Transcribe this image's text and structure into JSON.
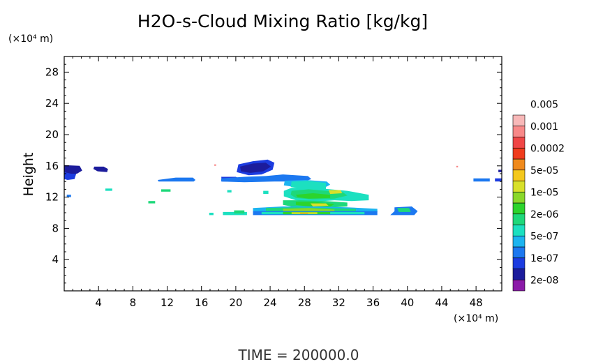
{
  "chart_data": {
    "type": "heatmap",
    "title": "H2O-s-Cloud Mixing Ratio [kg/kg]",
    "ylabel": "Height",
    "y_unit": "(×10⁴ m)",
    "x_unit": "(×10⁴ m)",
    "footer": "TIME = 200000.0",
    "xlim": [
      0,
      51
    ],
    "ylim": [
      0,
      30
    ],
    "x_ticks": [
      4,
      8,
      12,
      16,
      20,
      24,
      28,
      32,
      36,
      40,
      44,
      48
    ],
    "y_ticks": [
      4,
      8,
      12,
      16,
      20,
      24,
      28
    ],
    "colorbar": {
      "colors": [
        "#8b1aa8",
        "#1c1c9c",
        "#1c3ce0",
        "#1c78f0",
        "#1cb4f0",
        "#1ce0c0",
        "#1ed87a",
        "#2cd42c",
        "#8ad82a",
        "#d8e02a",
        "#f4c81c",
        "#f08a1c",
        "#f03c1c",
        "#f04646",
        "#f88888",
        "#f8b8b8"
      ],
      "labels": [
        "2e-08",
        "1e-07",
        "5e-07",
        "2e-06",
        "1e-05",
        "5e-05",
        "0.0002",
        "0.001",
        "0.005"
      ]
    },
    "regions": [
      {
        "level": 1,
        "pts": [
          [
            0,
            16.1
          ],
          [
            1.8,
            16.0
          ],
          [
            2.1,
            15.4
          ],
          [
            1.5,
            15.0
          ],
          [
            0.6,
            15.0
          ],
          [
            0,
            15.1
          ]
        ]
      },
      {
        "level": 2,
        "pts": [
          [
            0,
            15.2
          ],
          [
            0.8,
            15.0
          ],
          [
            1.4,
            15.0
          ],
          [
            1.2,
            14.3
          ],
          [
            0.4,
            14.2
          ],
          [
            0,
            14.3
          ]
        ]
      },
      {
        "level": 1,
        "pts": [
          [
            3.5,
            15.9
          ],
          [
            4.6,
            15.9
          ],
          [
            5.1,
            15.6
          ],
          [
            5.0,
            15.2
          ],
          [
            3.9,
            15.3
          ],
          [
            3.4,
            15.6
          ]
        ]
      },
      {
        "level": 3,
        "pts": [
          [
            0.3,
            12.3
          ],
          [
            0.8,
            12.3
          ],
          [
            0.8,
            12.0
          ],
          [
            0.3,
            12.0
          ]
        ]
      },
      {
        "level": 5,
        "pts": [
          [
            4.8,
            13.1
          ],
          [
            5.6,
            13.1
          ],
          [
            5.6,
            12.8
          ],
          [
            4.8,
            12.8
          ]
        ]
      },
      {
        "level": 6,
        "pts": [
          [
            9.8,
            11.5
          ],
          [
            10.6,
            11.5
          ],
          [
            10.6,
            11.2
          ],
          [
            9.8,
            11.2
          ]
        ]
      },
      {
        "level": 6,
        "pts": [
          [
            11.3,
            13.0
          ],
          [
            12.4,
            13.0
          ],
          [
            12.4,
            12.7
          ],
          [
            11.3,
            12.7
          ]
        ]
      },
      {
        "level": 3,
        "pts": [
          [
            10.9,
            14.2
          ],
          [
            13.0,
            14.5
          ],
          [
            15.0,
            14.5
          ],
          [
            15.3,
            14.2
          ],
          [
            15.1,
            14.0
          ],
          [
            11.0,
            14.0
          ]
        ]
      },
      {
        "level": 2,
        "pts": [
          [
            20.3,
            16.2
          ],
          [
            22.0,
            16.6
          ],
          [
            23.7,
            16.8
          ],
          [
            24.5,
            16.4
          ],
          [
            24.3,
            15.5
          ],
          [
            23.0,
            14.9
          ],
          [
            21.5,
            14.8
          ],
          [
            20.1,
            15.2
          ]
        ]
      },
      {
        "level": 1,
        "pts": [
          [
            20.5,
            15.9
          ],
          [
            22.0,
            16.3
          ],
          [
            23.5,
            16.4
          ],
          [
            24.1,
            15.9
          ],
          [
            23.2,
            15.3
          ],
          [
            21.7,
            15.1
          ],
          [
            20.6,
            15.3
          ]
        ]
      },
      {
        "level": 2,
        "pts": [
          [
            18.3,
            14.6
          ],
          [
            20.0,
            14.6
          ],
          [
            20.5,
            14.3
          ],
          [
            19.8,
            14.0
          ],
          [
            18.4,
            14.0
          ]
        ]
      },
      {
        "level": 3,
        "pts": [
          [
            18.3,
            14.4
          ],
          [
            21.0,
            14.6
          ],
          [
            23.5,
            14.7
          ],
          [
            24.5,
            14.8
          ],
          [
            25.5,
            14.9
          ],
          [
            28.4,
            14.7
          ],
          [
            28.8,
            14.3
          ],
          [
            28.0,
            14.0
          ],
          [
            24.5,
            14.0
          ],
          [
            21.0,
            13.9
          ],
          [
            18.3,
            14.0
          ]
        ]
      },
      {
        "level": 4,
        "pts": [
          [
            25.7,
            14.1
          ],
          [
            28.1,
            14.2
          ],
          [
            30.6,
            14.0
          ],
          [
            31.0,
            13.6
          ],
          [
            30.5,
            13.3
          ],
          [
            27.5,
            13.2
          ],
          [
            25.6,
            13.5
          ]
        ]
      },
      {
        "level": 5,
        "pts": [
          [
            26.5,
            14.0
          ],
          [
            28.5,
            14.1
          ],
          [
            30.5,
            13.8
          ],
          [
            30.5,
            13.0
          ],
          [
            28.0,
            13.0
          ],
          [
            26.4,
            13.3
          ]
        ]
      },
      {
        "level": 5,
        "pts": [
          [
            25.6,
            12.8
          ],
          [
            26.5,
            13.2
          ],
          [
            29.0,
            13.2
          ],
          [
            31.0,
            13.0
          ],
          [
            33.0,
            12.8
          ],
          [
            35.5,
            12.3
          ],
          [
            35.5,
            11.6
          ],
          [
            33.5,
            11.5
          ],
          [
            31.5,
            11.6
          ],
          [
            29.0,
            11.4
          ],
          [
            27.0,
            11.6
          ],
          [
            25.6,
            12.1
          ]
        ]
      },
      {
        "level": 6,
        "pts": [
          [
            26.5,
            12.8
          ],
          [
            28.5,
            13.0
          ],
          [
            30.5,
            12.8
          ],
          [
            32.5,
            12.6
          ],
          [
            33.0,
            12.2
          ],
          [
            31.5,
            11.8
          ],
          [
            29.0,
            11.7
          ],
          [
            27.0,
            11.9
          ],
          [
            26.4,
            12.3
          ]
        ]
      },
      {
        "level": 7,
        "pts": [
          [
            27.0,
            12.3
          ],
          [
            29.0,
            12.5
          ],
          [
            31.0,
            12.3
          ],
          [
            31.0,
            11.9
          ],
          [
            28.5,
            11.8
          ],
          [
            27.2,
            12.0
          ]
        ]
      },
      {
        "level": 9,
        "pts": [
          [
            30.8,
            12.9
          ],
          [
            32.2,
            12.9
          ],
          [
            32.4,
            12.5
          ],
          [
            31.0,
            12.4
          ]
        ]
      },
      {
        "level": 6,
        "pts": [
          [
            25.5,
            11.6
          ],
          [
            27.5,
            11.6
          ],
          [
            30.5,
            11.5
          ],
          [
            33.0,
            11.3
          ],
          [
            33.0,
            10.8
          ],
          [
            30.0,
            10.6
          ],
          [
            27.0,
            10.7
          ],
          [
            25.5,
            11.0
          ]
        ]
      },
      {
        "level": 7,
        "pts": [
          [
            27.0,
            11.4
          ],
          [
            29.0,
            11.4
          ],
          [
            31.5,
            11.1
          ],
          [
            31.0,
            10.8
          ],
          [
            28.5,
            10.8
          ],
          [
            27.0,
            11.0
          ]
        ]
      },
      {
        "level": 9,
        "pts": [
          [
            28.7,
            11.2
          ],
          [
            30.5,
            11.2
          ],
          [
            30.8,
            10.9
          ],
          [
            29.0,
            10.8
          ]
        ]
      },
      {
        "level": 4,
        "pts": [
          [
            22.0,
            10.6
          ],
          [
            25.5,
            10.8
          ],
          [
            29.0,
            10.8
          ],
          [
            33.0,
            10.7
          ],
          [
            36.5,
            10.5
          ],
          [
            36.5,
            10.1
          ],
          [
            22.0,
            10.1
          ]
        ]
      },
      {
        "level": 6,
        "pts": [
          [
            23.5,
            10.6
          ],
          [
            27.0,
            10.7
          ],
          [
            31.0,
            10.6
          ],
          [
            34.0,
            10.5
          ],
          [
            34.0,
            10.2
          ],
          [
            23.5,
            10.2
          ]
        ]
      },
      {
        "level": 8,
        "pts": [
          [
            25.5,
            10.5
          ],
          [
            28.5,
            10.6
          ],
          [
            31.5,
            10.4
          ],
          [
            31.5,
            10.2
          ],
          [
            25.5,
            10.2
          ]
        ]
      },
      {
        "level": 3,
        "pts": [
          [
            22.0,
            10.2
          ],
          [
            36.5,
            10.2
          ],
          [
            36.5,
            9.7
          ],
          [
            22.0,
            9.7
          ]
        ]
      },
      {
        "level": 5,
        "pts": [
          [
            23.0,
            10.1
          ],
          [
            35.0,
            10.1
          ],
          [
            35.0,
            9.8
          ],
          [
            23.0,
            9.8
          ]
        ]
      },
      {
        "level": 7,
        "pts": [
          [
            25.5,
            10.1
          ],
          [
            31.0,
            10.1
          ],
          [
            31.0,
            9.8
          ],
          [
            25.5,
            9.8
          ]
        ]
      },
      {
        "level": 9,
        "pts": [
          [
            26.5,
            10.05
          ],
          [
            29.5,
            10.05
          ],
          [
            29.5,
            9.85
          ],
          [
            26.5,
            9.85
          ]
        ]
      },
      {
        "level": 11,
        "pts": [
          [
            27.5,
            10.0
          ],
          [
            28.4,
            10.0
          ],
          [
            28.4,
            9.9
          ],
          [
            27.5,
            9.9
          ]
        ]
      },
      {
        "level": 5,
        "pts": [
          [
            18.5,
            10.1
          ],
          [
            21.3,
            10.1
          ],
          [
            21.3,
            9.7
          ],
          [
            18.5,
            9.7
          ]
        ]
      },
      {
        "level": 6,
        "pts": [
          [
            19.8,
            10.3
          ],
          [
            21.0,
            10.3
          ],
          [
            21.0,
            9.9
          ],
          [
            19.8,
            9.9
          ]
        ]
      },
      {
        "level": 5,
        "pts": [
          [
            16.9,
            10.0
          ],
          [
            17.4,
            10.0
          ],
          [
            17.4,
            9.7
          ],
          [
            16.9,
            9.7
          ]
        ]
      },
      {
        "level": 5,
        "pts": [
          [
            19.0,
            12.9
          ],
          [
            19.5,
            12.9
          ],
          [
            19.5,
            12.6
          ],
          [
            19.0,
            12.6
          ]
        ]
      },
      {
        "level": 5,
        "pts": [
          [
            23.2,
            12.8
          ],
          [
            23.8,
            12.8
          ],
          [
            23.8,
            12.4
          ],
          [
            23.2,
            12.4
          ]
        ]
      },
      {
        "level": 3,
        "pts": [
          [
            38.5,
            10.7
          ],
          [
            40.5,
            10.8
          ],
          [
            41.2,
            10.2
          ],
          [
            40.8,
            9.7
          ],
          [
            38.0,
            9.7
          ],
          [
            38.5,
            10.2
          ]
        ]
      },
      {
        "level": 6,
        "pts": [
          [
            38.8,
            10.6
          ],
          [
            40.2,
            10.6
          ],
          [
            40.4,
            10.1
          ],
          [
            39.0,
            10.1
          ]
        ]
      },
      {
        "level": 3,
        "pts": [
          [
            47.7,
            14.4
          ],
          [
            49.6,
            14.4
          ],
          [
            49.6,
            14.0
          ],
          [
            47.7,
            14.0
          ]
        ]
      },
      {
        "level": 2,
        "pts": [
          [
            50.2,
            14.4
          ],
          [
            51.0,
            14.4
          ],
          [
            51.0,
            14.0
          ],
          [
            50.2,
            14.0
          ]
        ]
      },
      {
        "level": 1,
        "pts": [
          [
            50.6,
            15.5
          ],
          [
            51.0,
            15.5
          ],
          [
            51.0,
            15.2
          ],
          [
            50.6,
            15.2
          ]
        ]
      },
      {
        "level": 14,
        "pts": [
          [
            17.5,
            16.2
          ],
          [
            17.7,
            16.2
          ],
          [
            17.7,
            16.0
          ],
          [
            17.5,
            16.0
          ]
        ]
      },
      {
        "level": 14,
        "pts": [
          [
            45.7,
            16.0
          ],
          [
            45.9,
            16.0
          ],
          [
            45.9,
            15.8
          ],
          [
            45.7,
            15.8
          ]
        ]
      }
    ]
  }
}
